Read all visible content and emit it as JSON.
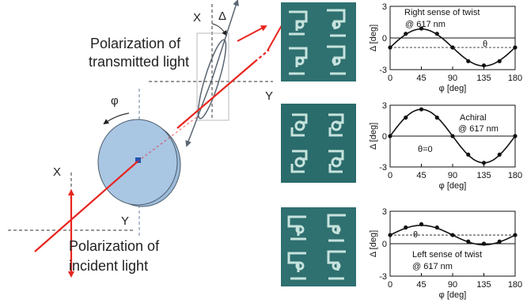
{
  "diagram": {
    "x_label": "X",
    "y_label": "Y",
    "delta_label": "Δ",
    "phi_label": "φ",
    "polarization_transmitted": [
      "Polarization of",
      "transmitted light"
    ],
    "polarization_incident": [
      "Polarization of",
      "incident light"
    ],
    "colors": {
      "beam": "#e8251f",
      "sample": "#a9c6e3",
      "sample_edge": "#4a5a6a",
      "ellipse": "#5a6673",
      "sem_bg": "#2f7070",
      "sem_line": "#d8f0ea"
    }
  },
  "chart_data": [
    {
      "type": "line",
      "panel": "right",
      "annotation": [
        "Right sense of twist",
        "@ 617 nm"
      ],
      "theta_label": "θ",
      "xlabel": "φ [deg]",
      "ylabel": "Δ [deg]",
      "xlim": [
        0,
        180
      ],
      "ylim": [
        -3,
        3
      ],
      "xticks": [
        0,
        45,
        90,
        135,
        180
      ],
      "yticks": [
        -3,
        0,
        3
      ],
      "offset": -0.9,
      "series": [
        {
          "x": [
            0,
            22.5,
            45,
            67.5,
            90,
            112.5,
            135,
            157.5,
            180
          ],
          "y": [
            -0.9,
            0.4,
            0.9,
            0.4,
            -0.9,
            -2.2,
            -2.6,
            -2.2,
            -0.9
          ]
        }
      ]
    },
    {
      "type": "line",
      "panel": "achiral",
      "annotation": [
        "Achiral",
        "@ 617 nm"
      ],
      "theta_label": "θ=0",
      "xlabel": "φ [deg]",
      "ylabel": "Δ [deg]",
      "xlim": [
        0,
        180
      ],
      "ylim": [
        -3,
        3
      ],
      "xticks": [
        0,
        45,
        90,
        135,
        180
      ],
      "yticks": [
        -3,
        0,
        3
      ],
      "offset": 0,
      "series": [
        {
          "x": [
            0,
            22.5,
            45,
            67.5,
            90,
            112.5,
            135,
            157.5,
            180
          ],
          "y": [
            0,
            1.8,
            2.6,
            1.8,
            0,
            -1.8,
            -2.6,
            -1.8,
            0
          ]
        }
      ]
    },
    {
      "type": "line",
      "panel": "left",
      "annotation": [
        "Left sense of twist",
        "@ 617 nm"
      ],
      "theta_label": "θ",
      "xlabel": "φ [deg]",
      "ylabel": "Δ [deg]",
      "xlim": [
        0,
        180
      ],
      "ylim": [
        -3,
        3
      ],
      "xticks": [
        0,
        45,
        90,
        135,
        180
      ],
      "yticks": [
        -3,
        0,
        3
      ],
      "offset": 0.8,
      "series": [
        {
          "x": [
            0,
            22.5,
            45,
            67.5,
            90,
            112.5,
            135,
            157.5,
            180
          ],
          "y": [
            0.8,
            1.5,
            1.8,
            1.5,
            0.8,
            0.2,
            0,
            0.2,
            0.8
          ]
        }
      ]
    }
  ]
}
